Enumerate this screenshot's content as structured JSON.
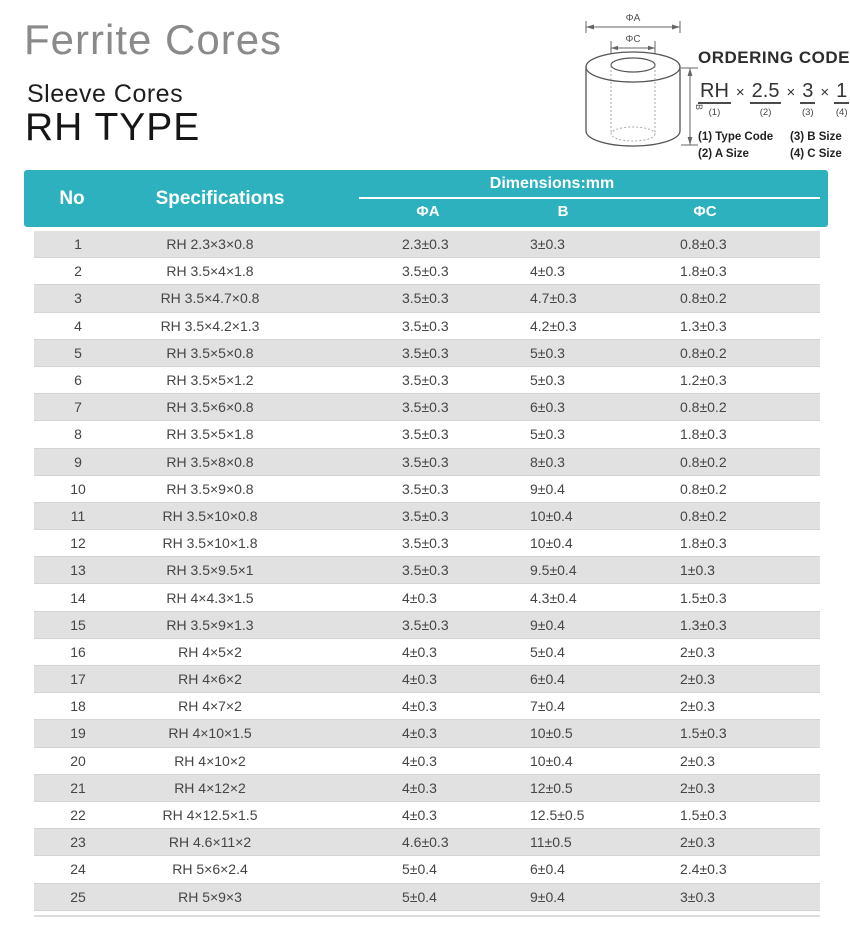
{
  "header": {
    "title": "Ferrite Cores",
    "subtitle": "Sleeve Cores",
    "type_title": "RH TYPE"
  },
  "diagram": {
    "phi_a": "ΦA",
    "phi_c": "ΦC",
    "b": "B"
  },
  "ordering": {
    "title": "ORDERING CODE",
    "separator": "×",
    "segments": [
      {
        "text": "RH",
        "num": "(1)"
      },
      {
        "text": "2.5",
        "num": "(2)"
      },
      {
        "text": "3",
        "num": "(3)"
      },
      {
        "text": "1",
        "num": "(4)"
      }
    ],
    "legend": [
      {
        "num": "(1)",
        "label": "Type Code"
      },
      {
        "num": "(3)",
        "label": "B Size"
      },
      {
        "num": "(2)",
        "label": "A Size"
      },
      {
        "num": "(4)",
        "label": "C Size"
      }
    ]
  },
  "table": {
    "headers": {
      "no": "No",
      "spec": "Specifications",
      "dims": "Dimensions:mm",
      "phi_a": "ΦA",
      "b": "B",
      "phi_c": "ΦC"
    },
    "rows": [
      {
        "no": "1",
        "spec": "RH 2.3×3×0.8",
        "a": "2.3±0.3",
        "b": "3±0.3",
        "c": "0.8±0.3"
      },
      {
        "no": "2",
        "spec": "RH 3.5×4×1.8",
        "a": "3.5±0.3",
        "b": "4±0.3",
        "c": "1.8±0.3"
      },
      {
        "no": "3",
        "spec": "RH 3.5×4.7×0.8",
        "a": "3.5±0.3",
        "b": "4.7±0.3",
        "c": "0.8±0.2"
      },
      {
        "no": "4",
        "spec": "RH 3.5×4.2×1.3",
        "a": "3.5±0.3",
        "b": "4.2±0.3",
        "c": "1.3±0.3"
      },
      {
        "no": "5",
        "spec": "RH 3.5×5×0.8",
        "a": "3.5±0.3",
        "b": "5±0.3",
        "c": "0.8±0.2"
      },
      {
        "no": "6",
        "spec": "RH 3.5×5×1.2",
        "a": "3.5±0.3",
        "b": "5±0.3",
        "c": "1.2±0.3"
      },
      {
        "no": "7",
        "spec": "RH 3.5×6×0.8",
        "a": "3.5±0.3",
        "b": "6±0.3",
        "c": "0.8±0.2"
      },
      {
        "no": "8",
        "spec": "RH 3.5×5×1.8",
        "a": "3.5±0.3",
        "b": "5±0.3",
        "c": "1.8±0.3"
      },
      {
        "no": "9",
        "spec": "RH 3.5×8×0.8",
        "a": "3.5±0.3",
        "b": "8±0.3",
        "c": "0.8±0.2"
      },
      {
        "no": "10",
        "spec": "RH 3.5×9×0.8",
        "a": "3.5±0.3",
        "b": "9±0.4",
        "c": "0.8±0.2"
      },
      {
        "no": "11",
        "spec": "RH 3.5×10×0.8",
        "a": "3.5±0.3",
        "b": "10±0.4",
        "c": "0.8±0.2"
      },
      {
        "no": "12",
        "spec": "RH 3.5×10×1.8",
        "a": "3.5±0.3",
        "b": "10±0.4",
        "c": "1.8±0.3"
      },
      {
        "no": "13",
        "spec": "RH 3.5×9.5×1",
        "a": "3.5±0.3",
        "b": "9.5±0.4",
        "c": "1±0.3"
      },
      {
        "no": "14",
        "spec": "RH 4×4.3×1.5",
        "a": "4±0.3",
        "b": "4.3±0.4",
        "c": "1.5±0.3"
      },
      {
        "no": "15",
        "spec": "RH 3.5×9×1.3",
        "a": "3.5±0.3",
        "b": "9±0.4",
        "c": "1.3±0.3"
      },
      {
        "no": "16",
        "spec": "RH 4×5×2",
        "a": "4±0.3",
        "b": "5±0.4",
        "c": "2±0.3"
      },
      {
        "no": "17",
        "spec": "RH 4×6×2",
        "a": "4±0.3",
        "b": "6±0.4",
        "c": "2±0.3"
      },
      {
        "no": "18",
        "spec": "RH 4×7×2",
        "a": "4±0.3",
        "b": "7±0.4",
        "c": "2±0.3"
      },
      {
        "no": "19",
        "spec": "RH 4×10×1.5",
        "a": "4±0.3",
        "b": "10±0.5",
        "c": "1.5±0.3"
      },
      {
        "no": "20",
        "spec": "RH 4×10×2",
        "a": "4±0.3",
        "b": "10±0.4",
        "c": "2±0.3"
      },
      {
        "no": "21",
        "spec": "RH 4×12×2",
        "a": "4±0.3",
        "b": "12±0.5",
        "c": "2±0.3"
      },
      {
        "no": "22",
        "spec": "RH 4×12.5×1.5",
        "a": "4±0.3",
        "b": "12.5±0.5",
        "c": "1.5±0.3"
      },
      {
        "no": "23",
        "spec": "RH 4.6×11×2",
        "a": "4.6±0.3",
        "b": "11±0.5",
        "c": "2±0.3"
      },
      {
        "no": "24",
        "spec": "RH 5×6×2.4",
        "a": "5±0.4",
        "b": "6±0.4",
        "c": "2.4±0.3"
      },
      {
        "no": "25",
        "spec": "RH 5×9×3",
        "a": "5±0.4",
        "b": "9±0.4",
        "c": "3±0.3"
      }
    ]
  },
  "colors": {
    "teal": "#2EB1BE",
    "row_alt": "#E1E1E1",
    "title_gray": "#8A8A8A",
    "text_dark": "#454545"
  }
}
